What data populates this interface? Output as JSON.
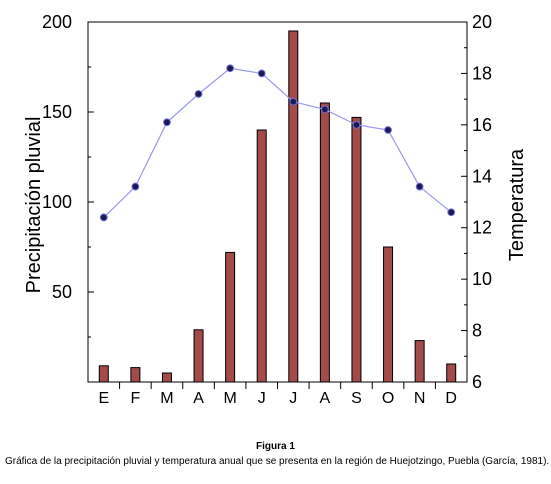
{
  "figure": {
    "title": "Figura 1",
    "caption": "Gráfica de la precipitación pluvial y temperatura anual que se presenta en la región de Huejotzingo, Puebla (García, 1981)."
  },
  "chart_data": {
    "type": "bar",
    "categories": [
      "E",
      "F",
      "M",
      "A",
      "M",
      "J",
      "J",
      "A",
      "S",
      "O",
      "N",
      "D"
    ],
    "ylabel": "Precipitación pluvial",
    "y2label": "Temperatura",
    "ylim": [
      0,
      200
    ],
    "y2lim": [
      6,
      20
    ],
    "yticks": [
      "50",
      "100",
      "150",
      "200"
    ],
    "y2ticks": [
      "6",
      "8",
      "10",
      "12",
      "14",
      "16",
      "18",
      "20"
    ],
    "grid": false,
    "series": [
      {
        "type": "bar",
        "axis": "left",
        "color": "#a34a4a",
        "values": [
          9,
          8,
          5,
          29,
          72,
          140,
          195,
          155,
          147,
          75,
          23,
          10
        ]
      },
      {
        "type": "line",
        "axis": "right",
        "color": "#9999ee",
        "marker_color": "#1a1a55",
        "values": [
          12.4,
          13.6,
          16.1,
          17.2,
          18.2,
          18.0,
          16.9,
          16.6,
          16.0,
          15.8,
          13.6,
          12.6
        ]
      }
    ]
  }
}
